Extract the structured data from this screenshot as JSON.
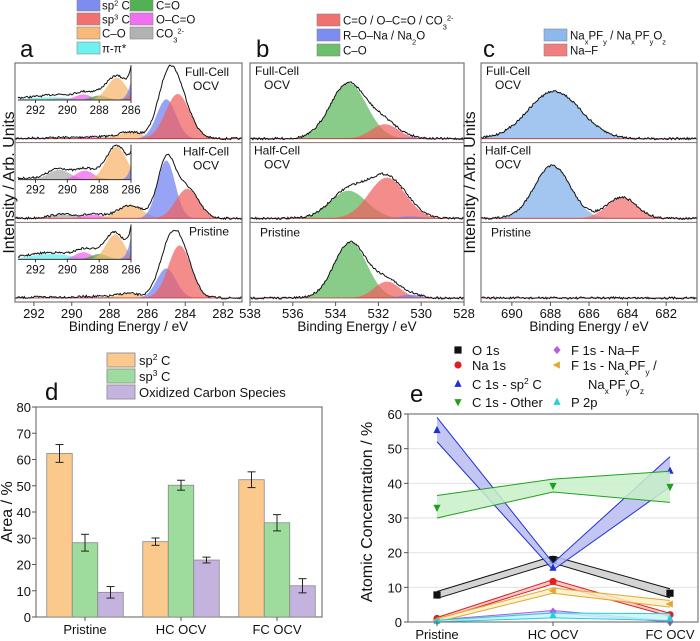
{
  "chart_data": [
    {
      "panel": "a",
      "type": "area",
      "xlabel": "Binding Energy / eV",
      "ylabel": "Intensity / Arb. Units",
      "xlim": [
        293,
        281
      ],
      "xticks": [
        292,
        290,
        288,
        286,
        284,
        282
      ],
      "inset_xlim": [
        293.1,
        286
      ],
      "inset_xticks": [
        292,
        290,
        288,
        286
      ],
      "legend": [
        {
          "key": "sp2",
          "segs": [
            [
              "sp"
            ],
            [
              "2",
              "sup"
            ],
            [
              " C"
            ]
          ],
          "color": "#6f7ff0"
        },
        {
          "key": "sp3",
          "segs": [
            [
              "sp"
            ],
            [
              "3",
              "sup"
            ],
            [
              " C"
            ]
          ],
          "color": "#f06060"
        },
        {
          "key": "CO",
          "segs": [
            [
              "C–O"
            ]
          ],
          "color": "#f7b36a"
        },
        {
          "key": "pi",
          "segs": [
            [
              "π-π*"
            ]
          ],
          "color": "#5ef0f0"
        },
        {
          "key": "C=O",
          "segs": [
            [
              "C=O"
            ]
          ],
          "color": "#3fa83f"
        },
        {
          "key": "OCO",
          "segs": [
            [
              "O–C=O"
            ]
          ],
          "color": "#f060f0"
        },
        {
          "key": "CO3",
          "segs": [
            [
              "CO"
            ],
            [
              "3",
              "sub"
            ],
            [
              "2-",
              "sup"
            ]
          ],
          "color": "#aaaaaa"
        }
      ],
      "spectra": [
        {
          "label1": "Full-Cell",
          "label2": "OCV",
          "peaks": [
            {
              "key": "pi",
              "center": 291.0,
              "height": 0.012,
              "fwhm": 3.0
            },
            {
              "key": "CO3",
              "center": 290.4,
              "height": 0.008,
              "fwhm": 1.4
            },
            {
              "key": "OCO",
              "center": 289.0,
              "height": 0.025,
              "fwhm": 1.2
            },
            {
              "key": "C=O",
              "center": 288.0,
              "height": 0.02,
              "fwhm": 1.2
            },
            {
              "key": "CO",
              "center": 286.9,
              "height": 0.1,
              "fwhm": 1.4
            },
            {
              "key": "sp2",
              "center": 285.0,
              "height": 0.6,
              "fwhm": 1.2
            },
            {
              "key": "sp3",
              "center": 284.4,
              "height": 0.68,
              "fwhm": 1.5
            }
          ]
        },
        {
          "label1": "Half-Cell",
          "label2": "OCV",
          "peaks": [
            {
              "key": "CO3",
              "center": 290.5,
              "height": 0.06,
              "fwhm": 1.6
            },
            {
              "key": "OCO",
              "center": 288.9,
              "height": 0.055,
              "fwhm": 1.3
            },
            {
              "key": "C=O",
              "center": 288.0,
              "height": 0.01,
              "fwhm": 1.2
            },
            {
              "key": "CO",
              "center": 286.9,
              "height": 0.2,
              "fwhm": 1.5
            },
            {
              "key": "sp2",
              "center": 285.0,
              "height": 0.88,
              "fwhm": 1.1
            },
            {
              "key": "sp3",
              "center": 283.9,
              "height": 0.45,
              "fwhm": 1.4
            }
          ]
        },
        {
          "label1": "Pristine",
          "label2": "",
          "peaks": [
            {
              "key": "pi",
              "center": 291.0,
              "height": 0.015,
              "fwhm": 3.0
            },
            {
              "key": "OCO",
              "center": 289.0,
              "height": 0.02,
              "fwhm": 1.2
            },
            {
              "key": "C=O",
              "center": 288.0,
              "height": 0.015,
              "fwhm": 1.2
            },
            {
              "key": "CO",
              "center": 287.0,
              "height": 0.07,
              "fwhm": 1.3
            },
            {
              "key": "sp2",
              "center": 285.0,
              "height": 0.45,
              "fwhm": 1.2
            },
            {
              "key": "sp3",
              "center": 284.3,
              "height": 0.8,
              "fwhm": 1.4
            }
          ]
        }
      ]
    },
    {
      "panel": "b",
      "type": "area",
      "xlabel": "Binding Energy / eV",
      "xlim": [
        538,
        528
      ],
      "xticks": [
        538,
        536,
        534,
        532,
        530,
        528
      ],
      "legend": [
        {
          "key": "C=O",
          "segs": [
            [
              "C=O / O–C=O / CO"
            ],
            [
              "3",
              "sub"
            ],
            [
              "2-",
              "sup"
            ]
          ],
          "color": "#f06060"
        },
        {
          "key": "RONa",
          "segs": [
            [
              "R–O–Na / Na"
            ],
            [
              "2",
              "sub"
            ],
            [
              "O"
            ]
          ],
          "color": "#6f7ff0"
        },
        {
          "key": "CO",
          "segs": [
            [
              "C–O"
            ]
          ],
          "color": "#5cb85c"
        }
      ],
      "spectra": [
        {
          "label1": "Full-Cell",
          "label2": "OCV",
          "peaks": [
            {
              "key": "CO",
              "center": 533.4,
              "height": 0.85,
              "fwhm": 2.0
            },
            {
              "key": "C=O",
              "center": 531.7,
              "height": 0.22,
              "fwhm": 1.5
            },
            {
              "key": "RONa",
              "center": 530.5,
              "height": 0.02,
              "fwhm": 1.2
            }
          ]
        },
        {
          "label1": "Half-Cell",
          "label2": "OCV",
          "peaks": [
            {
              "key": "CO",
              "center": 533.4,
              "height": 0.42,
              "fwhm": 2.0
            },
            {
              "key": "C=O",
              "center": 531.6,
              "height": 0.62,
              "fwhm": 2.0
            },
            {
              "key": "RONa",
              "center": 530.5,
              "height": 0.03,
              "fwhm": 1.2
            }
          ]
        },
        {
          "label1": "Pristine",
          "label2": "",
          "peaks": [
            {
              "key": "CO",
              "center": 533.3,
              "height": 0.85,
              "fwhm": 1.8
            },
            {
              "key": "C=O",
              "center": 531.6,
              "height": 0.25,
              "fwhm": 1.4
            },
            {
              "key": "RONa",
              "center": 530.5,
              "height": 0.05,
              "fwhm": 1.2
            }
          ]
        }
      ]
    },
    {
      "panel": "c",
      "type": "area",
      "xlabel": "Binding Energy / eV",
      "ylabel": "Intensity / Arb. Units",
      "xlim": [
        691.6,
        680.4
      ],
      "xticks": [
        690,
        688,
        686,
        684,
        682
      ],
      "legend": [
        {
          "key": "NaPF",
          "segs": [
            [
              "Na"
            ],
            [
              "x",
              "sub"
            ],
            [
              "PF"
            ],
            [
              "y",
              "sub"
            ],
            [
              " / Na"
            ],
            [
              "x",
              "sub"
            ],
            [
              "PF"
            ],
            [
              "y",
              "sub"
            ],
            [
              "O"
            ],
            [
              "z",
              "sub"
            ]
          ],
          "color": "#7fb0ec"
        },
        {
          "key": "NaF",
          "segs": [
            [
              "Na–F"
            ]
          ],
          "color": "#f07070"
        }
      ],
      "spectra": [
        {
          "label1": "Full-Cell",
          "label2": "OCV",
          "peaks": [
            {
              "key": "NaPF",
              "center": 687.8,
              "height": 0.72,
              "fwhm": 3.2
            }
          ]
        },
        {
          "label1": "Half-Cell",
          "label2": "OCV",
          "peaks": [
            {
              "key": "NaPF",
              "center": 687.9,
              "height": 0.8,
              "fwhm": 2.2
            },
            {
              "key": "NaF",
              "center": 684.3,
              "height": 0.32,
              "fwhm": 1.8
            }
          ]
        },
        {
          "label1": "Pristine",
          "label2": "",
          "peaks": []
        }
      ]
    },
    {
      "panel": "d",
      "type": "bar",
      "ylabel": "Area / %",
      "ylim": [
        0,
        80
      ],
      "yticks": [
        0,
        10,
        20,
        30,
        40,
        50,
        60,
        70,
        80
      ],
      "categories": [
        "Pristine",
        "HC OCV",
        "FC OCV"
      ],
      "series": [
        {
          "name": "sp2 C",
          "segs": [
            [
              "sp"
            ],
            [
              "2",
              "sup"
            ],
            [
              " C"
            ]
          ],
          "color": "#fcc98c",
          "values": [
            62.3,
            28.7,
            52.3
          ],
          "errors": [
            3.4,
            1.4,
            3.0
          ]
        },
        {
          "name": "sp3 C",
          "segs": [
            [
              "sp"
            ],
            [
              "3",
              "sup"
            ],
            [
              " C"
            ]
          ],
          "color": "#9edc9e",
          "values": [
            28.3,
            50.2,
            35.9
          ],
          "errors": [
            3.2,
            1.9,
            3.1
          ]
        },
        {
          "name": "Oxidized Carbon Species",
          "segs": [
            [
              "Oxidized Carbon Species"
            ]
          ],
          "color": "#c4b3de",
          "values": [
            9.4,
            21.7,
            11.9
          ],
          "errors": [
            2.2,
            1.1,
            2.7
          ]
        }
      ]
    },
    {
      "panel": "e",
      "type": "line",
      "ylabel": "Atomic Concentration / %",
      "ylim": [
        0,
        60
      ],
      "yticks": [
        0,
        10,
        20,
        30,
        40,
        50,
        60
      ],
      "grid": true,
      "categories": [
        "Pristine",
        "HC OCV",
        "FC OCV"
      ],
      "series": [
        {
          "name": "O 1s",
          "segs": [
            [
              "O 1s"
            ]
          ],
          "marker": "square",
          "color": "#111111",
          "fill": "#cccccc",
          "values": [
            7.8,
            18.0,
            8.3
          ],
          "band": [
            [
              6.8,
              8.8
            ],
            [
              17.0,
              19.0
            ],
            [
              7.0,
              9.6
            ]
          ]
        },
        {
          "name": "Na 1s",
          "segs": [
            [
              "Na 1s"
            ]
          ],
          "marker": "circle",
          "color": "#e02020",
          "fill": "#f6c0c0",
          "values": [
            1.0,
            11.7,
            2.1
          ],
          "band": [
            [
              0.6,
              1.3
            ],
            [
              11.0,
              12.2
            ],
            [
              1.6,
              2.5
            ]
          ]
        },
        {
          "name": "C 1s - sp2 C",
          "segs": [
            [
              "C 1s - sp"
            ],
            [
              "2",
              "sup"
            ],
            [
              " C"
            ]
          ],
          "marker": "triangle-up",
          "color": "#2030d0",
          "fill": "#b8bcf0",
          "values": [
            55.3,
            15.6,
            43.6
          ],
          "band": [
            [
              52.0,
              59.0
            ],
            [
              15.0,
              17.0
            ],
            [
              39.0,
              47.7
            ]
          ]
        },
        {
          "name": "C 1s - Other",
          "segs": [
            [
              "C 1s - Other"
            ]
          ],
          "marker": "triangle-down",
          "color": "#20a020",
          "fill": "#c8f0c8",
          "values": [
            33.0,
            39.3,
            39.0
          ],
          "band": [
            [
              30.0,
              36.5
            ],
            [
              37.5,
              41.2
            ],
            [
              34.5,
              43.5
            ]
          ]
        },
        {
          "name": "F 1s - Na–F",
          "segs": [
            [
              "F 1s - Na–F"
            ]
          ],
          "marker": "diamond",
          "color": "#b060e0",
          "fill": "#e8d0f6",
          "values": [
            0.3,
            3.0,
            0.0
          ],
          "band": [
            [
              0.0,
              0.6
            ],
            [
              2.6,
              3.3
            ],
            [
              0.0,
              0.3
            ]
          ]
        },
        {
          "name": "F 1s - NaxPFy / NaxPFyOz",
          "segs": [
            [
              "F 1s - Na"
            ],
            [
              "x",
              "sub"
            ],
            [
              "PF"
            ],
            [
              "y",
              "sub"
            ],
            [
              " /"
            ]
          ],
          "segs2": [
            [
              "Na"
            ],
            [
              "x",
              "sub"
            ],
            [
              "PF"
            ],
            [
              "y",
              "sub"
            ],
            [
              "O"
            ],
            [
              "z",
              "sub"
            ]
          ],
          "marker": "triangle-left",
          "color": "#e0a830",
          "fill": "#faf0c8",
          "values": [
            0.5,
            9.0,
            5.2
          ],
          "band": [
            [
              0.0,
              1.0
            ],
            [
              8.3,
              9.8
            ],
            [
              4.3,
              6.2
            ]
          ]
        },
        {
          "name": "P 2p",
          "segs": [
            [
              "P 2p"
            ]
          ],
          "marker": "triangle-up",
          "color": "#20d0e0",
          "fill": "#c8f4f8",
          "values": [
            0.2,
            1.9,
            1.0
          ],
          "band": [
            [
              0.0,
              0.5
            ],
            [
              1.2,
              2.6
            ],
            [
              0.4,
              2.4
            ]
          ]
        }
      ]
    }
  ]
}
